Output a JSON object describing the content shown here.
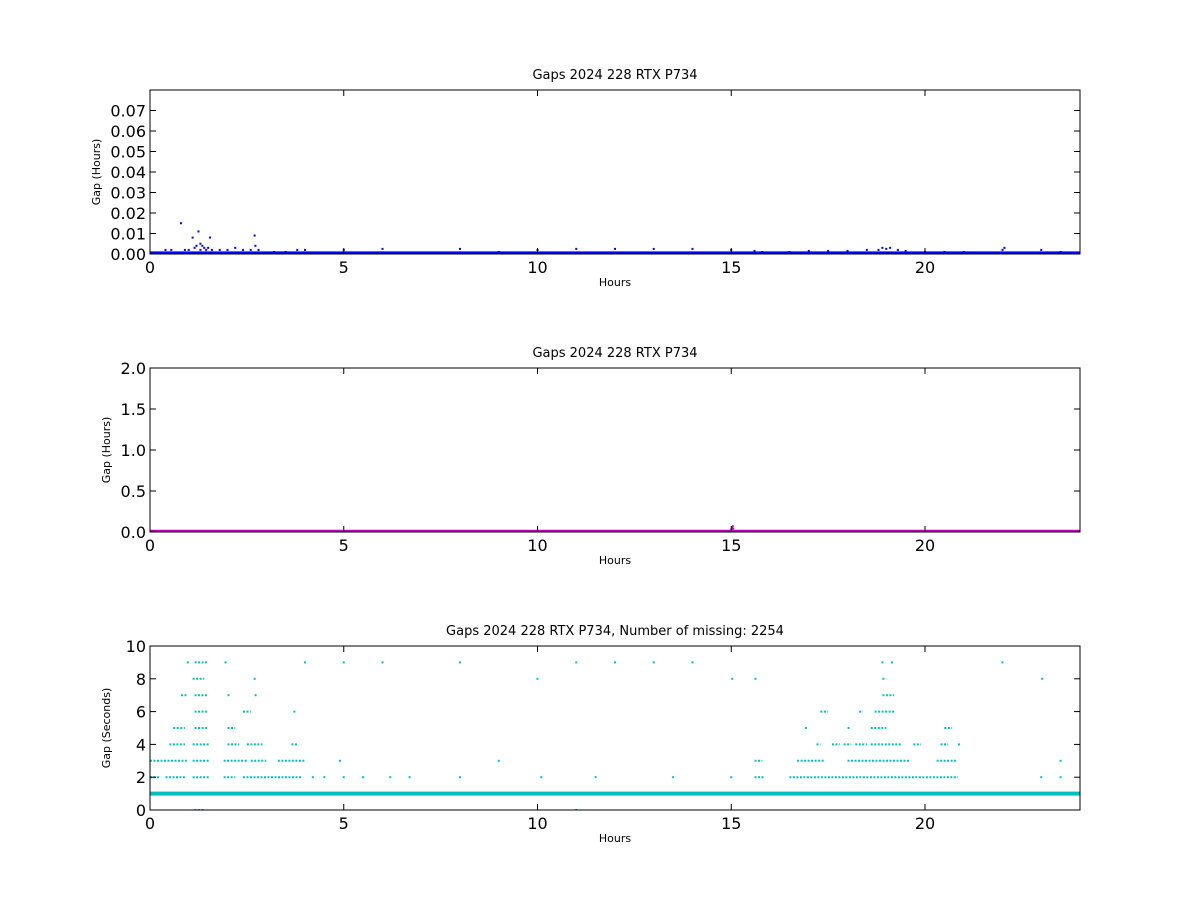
{
  "chart_data": [
    {
      "type": "scatter",
      "title": "Gaps 2024 228 RTX  P734",
      "xlabel": "Hours",
      "ylabel": "Gap (Hours)",
      "xlim": [
        0,
        24
      ],
      "ylim": [
        0,
        0.08
      ],
      "xticks": [
        "0",
        "5",
        "10",
        "15",
        "20"
      ],
      "yticks": [
        "0.00",
        "0.01",
        "0.02",
        "0.03",
        "0.04",
        "0.05",
        "0.06",
        "0.07"
      ],
      "grid": false,
      "color": "#0000ff",
      "series": [
        {
          "baseline": {
            "y": 0.0003,
            "x_from": 0,
            "x_to": 24
          },
          "points": [
            [
              0.4,
              0.002
            ],
            [
              0.55,
              0.002
            ],
            [
              0.8,
              0.015
            ],
            [
              0.9,
              0.002
            ],
            [
              1.0,
              0.002
            ],
            [
              1.1,
              0.008
            ],
            [
              1.15,
              0.003
            ],
            [
              1.2,
              0.004
            ],
            [
              1.25,
              0.011
            ],
            [
              1.3,
              0.005
            ],
            [
              1.3,
              0.002
            ],
            [
              1.35,
              0.004
            ],
            [
              1.4,
              0.003
            ],
            [
              1.45,
              0.002
            ],
            [
              1.5,
              0.003
            ],
            [
              1.55,
              0.008
            ],
            [
              1.6,
              0.002
            ],
            [
              1.8,
              0.002
            ],
            [
              2.0,
              0.002
            ],
            [
              2.2,
              0.003
            ],
            [
              2.4,
              0.002
            ],
            [
              2.6,
              0.002
            ],
            [
              2.7,
              0.009
            ],
            [
              2.72,
              0.004
            ],
            [
              2.8,
              0.002
            ],
            [
              3.2,
              0.001
            ],
            [
              3.5,
              0.001
            ],
            [
              3.8,
              0.002
            ],
            [
              4.0,
              0.002
            ],
            [
              5.0,
              0.002
            ],
            [
              6.0,
              0.0025
            ],
            [
              8.0,
              0.0025
            ],
            [
              9.0,
              0.001
            ],
            [
              10.0,
              0.002
            ],
            [
              11.0,
              0.0025
            ],
            [
              12.0,
              0.0025
            ],
            [
              13.0,
              0.0025
            ],
            [
              14.0,
              0.0025
            ],
            [
              15.0,
              0.002
            ],
            [
              15.6,
              0.0015
            ],
            [
              15.8,
              0.001
            ],
            [
              16.5,
              0.001
            ],
            [
              17.0,
              0.0015
            ],
            [
              17.5,
              0.0015
            ],
            [
              18.0,
              0.0015
            ],
            [
              18.5,
              0.002
            ],
            [
              18.8,
              0.002
            ],
            [
              18.9,
              0.003
            ],
            [
              19.0,
              0.0025
            ],
            [
              19.1,
              0.003
            ],
            [
              19.3,
              0.002
            ],
            [
              19.5,
              0.0015
            ],
            [
              20.0,
              0.001
            ],
            [
              20.5,
              0.001
            ],
            [
              21.0,
              0.001
            ],
            [
              22.0,
              0.002
            ],
            [
              22.05,
              0.003
            ],
            [
              23.0,
              0.002
            ],
            [
              23.5,
              0.001
            ]
          ]
        }
      ]
    },
    {
      "type": "scatter",
      "title": "Gaps 2024 228 RTX  P734",
      "xlabel": "Hours",
      "ylabel": "Gap (Hours)",
      "xlim": [
        0,
        24
      ],
      "ylim": [
        0,
        2.0
      ],
      "xticks": [
        "0",
        "5",
        "10",
        "15",
        "20"
      ],
      "yticks": [
        "0.0",
        "0.5",
        "1.0",
        "1.5",
        "2.0"
      ],
      "grid": false,
      "color": "#bf00bf",
      "series": [
        {
          "baseline": {
            "y": 0.003,
            "x_from": 0,
            "x_to": 24
          },
          "points": [
            [
              15.0,
              0.03
            ],
            [
              15.02,
              0.05
            ],
            [
              15.04,
              0.07
            ],
            [
              15.05,
              0.04
            ]
          ]
        }
      ]
    },
    {
      "type": "scatter",
      "title": "Gaps 2024 228 RTX  P734, Number of missing: 2254",
      "xlabel": "Hours",
      "ylabel": "Gap (Seconds)",
      "xlim": [
        0,
        24
      ],
      "ylim": [
        0,
        10
      ],
      "xticks": [
        "0",
        "5",
        "10",
        "15",
        "20"
      ],
      "yticks": [
        "0",
        "2",
        "4",
        "6",
        "8",
        "10"
      ],
      "grid": false,
      "color": "#00bfbf",
      "series": [
        {
          "baseline": {
            "y": 1,
            "x_from": 0,
            "x_to": 24
          },
          "segments": [
            {
              "y": 0,
              "x": [
                1.15,
                1.4
              ]
            },
            {
              "y": 2,
              "x": [
                0.0,
                0.25
              ]
            },
            {
              "y": 2,
              "x": [
                0.4,
                0.9
              ]
            },
            {
              "y": 2,
              "x": [
                1.1,
                1.55
              ]
            },
            {
              "y": 2,
              "x": [
                1.9,
                2.2
              ]
            },
            {
              "y": 2,
              "x": [
                2.4,
                3.9
              ]
            },
            {
              "y": 2,
              "x": [
                15.6,
                15.85
              ]
            },
            {
              "y": 2,
              "x": [
                16.5,
                20.85
              ]
            },
            {
              "y": 3,
              "x": [
                0.0,
                0.95
              ]
            },
            {
              "y": 3,
              "x": [
                1.1,
                1.55
              ]
            },
            {
              "y": 3,
              "x": [
                1.9,
                2.5
              ]
            },
            {
              "y": 3,
              "x": [
                2.6,
                3.0
              ]
            },
            {
              "y": 3,
              "x": [
                3.3,
                4.0
              ]
            },
            {
              "y": 3,
              "x": [
                15.6,
                15.8
              ]
            },
            {
              "y": 3,
              "x": [
                16.7,
                17.4
              ]
            },
            {
              "y": 3,
              "x": [
                18.0,
                19.6
              ]
            },
            {
              "y": 3,
              "x": [
                20.3,
                20.8
              ]
            },
            {
              "y": 4,
              "x": [
                0.5,
                0.9
              ]
            },
            {
              "y": 4,
              "x": [
                1.1,
                1.55
              ]
            },
            {
              "y": 4,
              "x": [
                2.0,
                2.3
              ]
            },
            {
              "y": 4,
              "x": [
                2.5,
                2.9
              ]
            },
            {
              "y": 4,
              "x": [
                3.65,
                3.8
              ]
            },
            {
              "y": 4,
              "x": [
                17.2,
                17.3
              ]
            },
            {
              "y": 4,
              "x": [
                17.6,
                17.8
              ]
            },
            {
              "y": 4,
              "x": [
                17.9,
                18.1
              ]
            },
            {
              "y": 4,
              "x": [
                18.2,
                18.5
              ]
            },
            {
              "y": 4,
              "x": [
                18.6,
                19.4
              ]
            },
            {
              "y": 4,
              "x": [
                19.7,
                19.9
              ]
            },
            {
              "y": 4,
              "x": [
                20.4,
                20.6
              ]
            },
            {
              "y": 4,
              "x": [
                20.85,
                20.9
              ]
            },
            {
              "y": 5,
              "x": [
                0.6,
                0.9
              ]
            },
            {
              "y": 5,
              "x": [
                1.15,
                1.5
              ]
            },
            {
              "y": 5,
              "x": [
                2.0,
                2.2
              ]
            },
            {
              "y": 5,
              "x": [
                16.9,
                16.95
              ]
            },
            {
              "y": 5,
              "x": [
                18.0,
                18.05
              ]
            },
            {
              "y": 5,
              "x": [
                18.6,
                19.0
              ]
            },
            {
              "y": 5,
              "x": [
                20.5,
                20.7
              ]
            },
            {
              "y": 6,
              "x": [
                1.15,
                1.5
              ]
            },
            {
              "y": 6,
              "x": [
                2.4,
                2.6
              ]
            },
            {
              "y": 6,
              "x": [
                3.7,
                3.75
              ]
            },
            {
              "y": 6,
              "x": [
                17.3,
                17.5
              ]
            },
            {
              "y": 6,
              "x": [
                18.3,
                18.4
              ]
            },
            {
              "y": 6,
              "x": [
                18.7,
                19.2
              ]
            },
            {
              "y": 7,
              "x": [
                0.8,
                0.95
              ]
            },
            {
              "y": 7,
              "x": [
                1.15,
                1.5
              ]
            },
            {
              "y": 7,
              "x": [
                2.0,
                2.05
              ]
            },
            {
              "y": 7,
              "x": [
                2.7,
                2.75
              ]
            },
            {
              "y": 7,
              "x": [
                18.9,
                19.2
              ]
            },
            {
              "y": 8,
              "x": [
                1.1,
                1.4
              ]
            },
            {
              "y": 8,
              "x": [
                15.0,
                15.05
              ]
            },
            {
              "y": 8,
              "x": [
                15.6,
                15.65
              ]
            },
            {
              "y": 8,
              "x": [
                18.9,
                19.0
              ]
            },
            {
              "y": 8,
              "x": [
                23.0,
                23.05
              ]
            },
            {
              "y": 9,
              "x": [
                0.95,
                1.0
              ]
            },
            {
              "y": 9,
              "x": [
                1.15,
                1.5
              ]
            }
          ],
          "points": [
            [
              2.7,
              8
            ],
            [
              10.0,
              8
            ],
            [
              1.95,
              9
            ],
            [
              4.0,
              9
            ],
            [
              5.0,
              9
            ],
            [
              6.0,
              9
            ],
            [
              8.0,
              9
            ],
            [
              11.0,
              9
            ],
            [
              12.0,
              9
            ],
            [
              13.0,
              9
            ],
            [
              14.0,
              9
            ],
            [
              18.9,
              9
            ],
            [
              19.15,
              9
            ],
            [
              22.0,
              9
            ],
            [
              4.2,
              2
            ],
            [
              4.5,
              2
            ],
            [
              5.0,
              2
            ],
            [
              5.5,
              2
            ],
            [
              6.2,
              2
            ],
            [
              6.7,
              2
            ],
            [
              8.0,
              2
            ],
            [
              10.1,
              2
            ],
            [
              11.5,
              2
            ],
            [
              13.5,
              2
            ],
            [
              15.0,
              2
            ],
            [
              23.0,
              2
            ],
            [
              23.5,
              2
            ],
            [
              4.9,
              3
            ],
            [
              9.0,
              3
            ],
            [
              23.5,
              3
            ],
            [
              11.0,
              0
            ]
          ]
        }
      ]
    }
  ]
}
